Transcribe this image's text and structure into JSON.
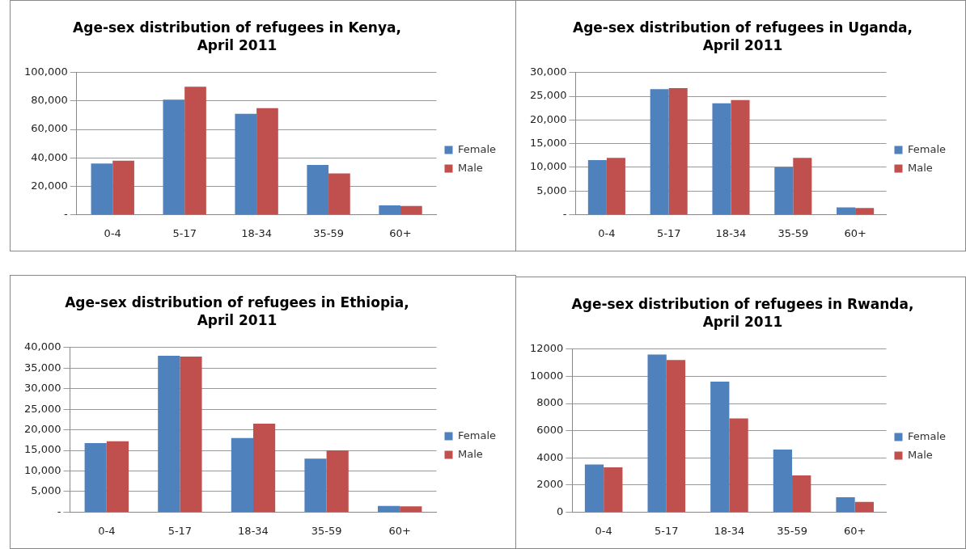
{
  "chart_data": [
    {
      "type": "bar",
      "title": "Age-sex distribution of refugees in Kenya, April 2011",
      "categories": [
        "0-4",
        "5-17",
        "18-34",
        "35-59",
        "60+"
      ],
      "series": [
        {
          "name": "Female",
          "color": "#4f81bd",
          "values": [
            36000,
            81000,
            71000,
            35000,
            6500
          ]
        },
        {
          "name": "Male",
          "color": "#c0504d",
          "values": [
            38000,
            90000,
            75000,
            29000,
            6000
          ]
        }
      ],
      "ylim": [
        0,
        100000
      ],
      "yticks": [
        {
          "value": 0,
          "label": "-"
        },
        {
          "value": 20000,
          "label": "20,000"
        },
        {
          "value": 40000,
          "label": "40,000"
        },
        {
          "value": 60000,
          "label": "60,000"
        },
        {
          "value": 80000,
          "label": "80,000"
        },
        {
          "value": 100000,
          "label": "100,000"
        }
      ],
      "grid": "y",
      "legend": "right"
    },
    {
      "type": "bar",
      "title": "Age-sex distribution of refugees in Uganda, April 2011",
      "categories": [
        "0-4",
        "5-17",
        "18-34",
        "35-59",
        "60+"
      ],
      "series": [
        {
          "name": "Female",
          "color": "#4f81bd",
          "values": [
            11500,
            26500,
            23500,
            10000,
            1500
          ]
        },
        {
          "name": "Male",
          "color": "#c0504d",
          "values": [
            12000,
            26700,
            24200,
            12000,
            1400
          ]
        }
      ],
      "ylim": [
        0,
        30000
      ],
      "yticks": [
        {
          "value": 0,
          "label": "-"
        },
        {
          "value": 5000,
          "label": "5,000"
        },
        {
          "value": 10000,
          "label": "10,000"
        },
        {
          "value": 15000,
          "label": "15,000"
        },
        {
          "value": 20000,
          "label": "20,000"
        },
        {
          "value": 25000,
          "label": "25,000"
        },
        {
          "value": 30000,
          "label": "30,000"
        }
      ],
      "grid": "y",
      "legend": "right"
    },
    {
      "type": "bar",
      "title": "Age-sex distribution of refugees in Ethiopia, April 2011",
      "categories": [
        "0-4",
        "5-17",
        "18-34",
        "35-59",
        "60+"
      ],
      "series": [
        {
          "name": "Female",
          "color": "#4f81bd",
          "values": [
            16800,
            38000,
            18000,
            13000,
            1500
          ]
        },
        {
          "name": "Male",
          "color": "#c0504d",
          "values": [
            17200,
            37800,
            21500,
            15000,
            1400
          ]
        }
      ],
      "ylim": [
        0,
        40000
      ],
      "yticks": [
        {
          "value": 0,
          "label": "-"
        },
        {
          "value": 5000,
          "label": "5,000"
        },
        {
          "value": 10000,
          "label": "10,000"
        },
        {
          "value": 15000,
          "label": "15,000"
        },
        {
          "value": 20000,
          "label": "20,000"
        },
        {
          "value": 25000,
          "label": "25,000"
        },
        {
          "value": 30000,
          "label": "30,000"
        },
        {
          "value": 35000,
          "label": "35,000"
        },
        {
          "value": 40000,
          "label": "40,000"
        }
      ],
      "grid": "y",
      "legend": "right"
    },
    {
      "type": "bar",
      "title": "Age-sex distribution of refugees in Rwanda, April 2011",
      "categories": [
        "0-4",
        "5-17",
        "18-34",
        "35-59",
        "60+"
      ],
      "series": [
        {
          "name": "Female",
          "color": "#4f81bd",
          "values": [
            3500,
            11600,
            9600,
            4600,
            1100
          ]
        },
        {
          "name": "Male",
          "color": "#c0504d",
          "values": [
            3300,
            11200,
            6900,
            2700,
            750
          ]
        }
      ],
      "ylim": [
        0,
        12000
      ],
      "yticks": [
        0,
        2000,
        4000,
        6000,
        8000,
        10000,
        12000
      ],
      "grid": "y",
      "legend": "right"
    }
  ]
}
